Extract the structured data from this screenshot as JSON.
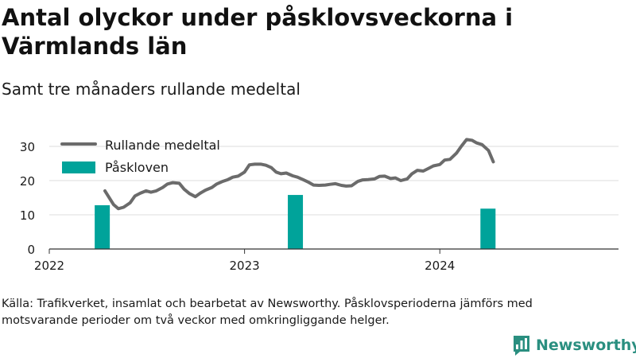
{
  "title": "Antal olyckor under påsklovsveckorna i Värmlands län",
  "subtitle": "Samt tre månaders rullande medeltal",
  "source": "Källa: Trafikverket, insamlat och bearbetat av Newsworthy. Påsklovsperioderna jämförs med motsvarande perioder om två veckor med omkringliggande helger.",
  "brand": {
    "name": "Newsworthy",
    "color": "#2a8f80",
    "icon": "bar-chart-logo-icon"
  },
  "colors": {
    "line": "#6b6b6b",
    "bar": "#00a39a",
    "grid": "#dcdcdc",
    "axis": "#333333",
    "text": "#1a1a1a"
  },
  "chart_data": {
    "type": "bar+line",
    "x_ticks": [
      "2022",
      "2023",
      "2024"
    ],
    "x_range": [
      "2022-01-01",
      "2024-11-30"
    ],
    "ylim": [
      0,
      32
    ],
    "y_ticks": [
      0,
      10,
      20,
      30
    ],
    "grid": true,
    "legend_position": "top-left",
    "series": [
      {
        "name": "Rullande medeltal",
        "type": "line",
        "points": [
          [
            "2022-04-15",
            17
          ],
          [
            "2022-05-01",
            13
          ],
          [
            "2022-05-10",
            11.8
          ],
          [
            "2022-05-20",
            12.2
          ],
          [
            "2022-06-01",
            13.5
          ],
          [
            "2022-06-10",
            15.5
          ],
          [
            "2022-06-20",
            16.3
          ],
          [
            "2022-07-01",
            17
          ],
          [
            "2022-07-10",
            16.6
          ],
          [
            "2022-07-20",
            17
          ],
          [
            "2022-08-01",
            18
          ],
          [
            "2022-08-10",
            19
          ],
          [
            "2022-08-20",
            19.4
          ],
          [
            "2022-09-01",
            19.2
          ],
          [
            "2022-09-10",
            17.5
          ],
          [
            "2022-09-20",
            16.2
          ],
          [
            "2022-10-01",
            15.3
          ],
          [
            "2022-10-10",
            16.3
          ],
          [
            "2022-10-20",
            17.2
          ],
          [
            "2022-11-01",
            18
          ],
          [
            "2022-11-10",
            19
          ],
          [
            "2022-11-20",
            19.7
          ],
          [
            "2022-12-01",
            20.3
          ],
          [
            "2022-12-10",
            21
          ],
          [
            "2022-12-20",
            21.3
          ],
          [
            "2023-01-01",
            22.5
          ],
          [
            "2023-01-10",
            24.6
          ],
          [
            "2023-01-20",
            24.8
          ],
          [
            "2023-02-01",
            24.8
          ],
          [
            "2023-02-10",
            24.5
          ],
          [
            "2023-02-20",
            23.8
          ],
          [
            "2023-03-01",
            22.5
          ],
          [
            "2023-03-10",
            22
          ],
          [
            "2023-03-20",
            22.2
          ],
          [
            "2023-04-01",
            21.4
          ],
          [
            "2023-04-10",
            21
          ],
          [
            "2023-04-20",
            20.3
          ],
          [
            "2023-05-01",
            19.5
          ],
          [
            "2023-05-10",
            18.7
          ],
          [
            "2023-05-20",
            18.6
          ],
          [
            "2023-06-01",
            18.7
          ],
          [
            "2023-06-10",
            18.9
          ],
          [
            "2023-06-20",
            19.1
          ],
          [
            "2023-07-01",
            18.6
          ],
          [
            "2023-07-10",
            18.4
          ],
          [
            "2023-07-20",
            18.5
          ],
          [
            "2023-08-01",
            19.8
          ],
          [
            "2023-08-10",
            20.2
          ],
          [
            "2023-08-20",
            20.3
          ],
          [
            "2023-09-01",
            20.5
          ],
          [
            "2023-09-10",
            21.2
          ],
          [
            "2023-09-20",
            21.3
          ],
          [
            "2023-10-01",
            20.6
          ],
          [
            "2023-10-10",
            20.8
          ],
          [
            "2023-10-20",
            20
          ],
          [
            "2023-11-01",
            20.5
          ],
          [
            "2023-11-10",
            22
          ],
          [
            "2023-11-20",
            23
          ],
          [
            "2023-12-01",
            22.8
          ],
          [
            "2023-12-10",
            23.5
          ],
          [
            "2023-12-20",
            24.3
          ],
          [
            "2024-01-01",
            24.7
          ],
          [
            "2024-01-10",
            26
          ],
          [
            "2024-01-20",
            26.2
          ],
          [
            "2024-02-01",
            28
          ],
          [
            "2024-02-10",
            30
          ],
          [
            "2024-02-20",
            32
          ],
          [
            "2024-03-01",
            31.8
          ],
          [
            "2024-03-10",
            31
          ],
          [
            "2024-03-20",
            30.5
          ],
          [
            "2024-04-01",
            28.8
          ],
          [
            "2024-04-10",
            25.5
          ]
        ]
      },
      {
        "name": "Påskloven",
        "type": "bar",
        "points": [
          [
            "2022-04-10",
            12.8
          ],
          [
            "2023-04-06",
            15.8
          ],
          [
            "2024-03-31",
            11.8
          ]
        ]
      }
    ]
  }
}
